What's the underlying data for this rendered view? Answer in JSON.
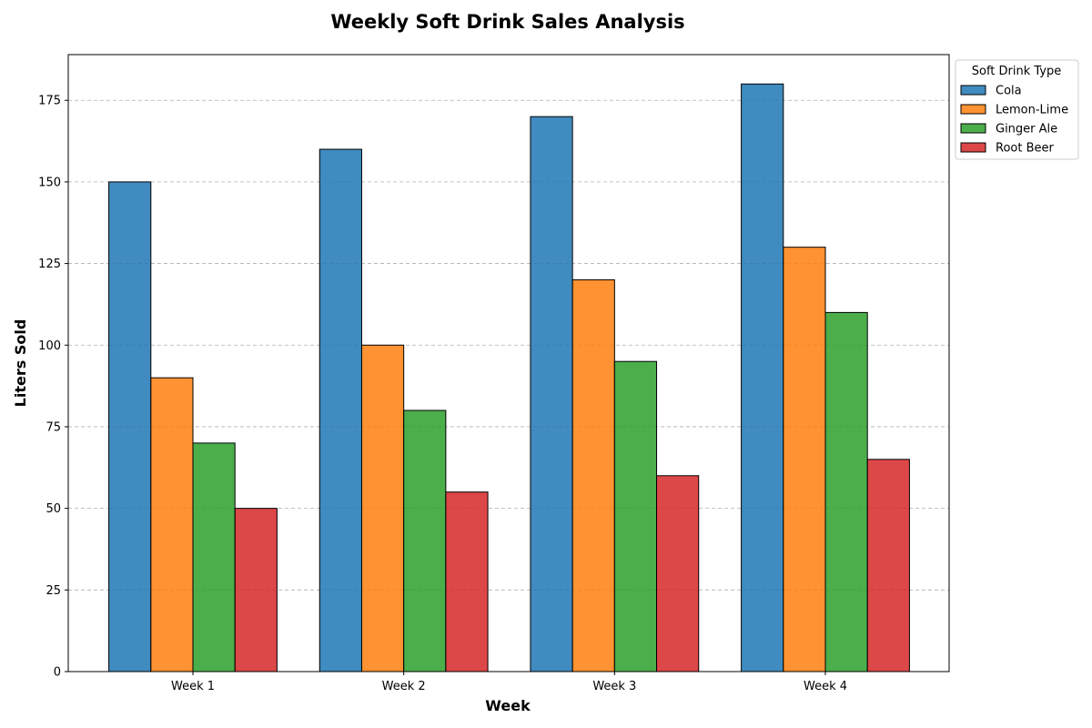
{
  "chart_data": {
    "type": "bar",
    "title": "Weekly Soft Drink Sales Analysis",
    "xlabel": "Week",
    "ylabel": "Liters Sold",
    "categories": [
      "Week 1",
      "Week 2",
      "Week 3",
      "Week 4"
    ],
    "series": [
      {
        "name": "Cola",
        "values": [
          150,
          160,
          170,
          180
        ],
        "color": "#1f77b4"
      },
      {
        "name": "Lemon-Lime",
        "values": [
          90,
          100,
          120,
          130
        ],
        "color": "#ff7f0e"
      },
      {
        "name": "Ginger Ale",
        "values": [
          70,
          80,
          95,
          110
        ],
        "color": "#2ca02c"
      },
      {
        "name": "Root Beer",
        "values": [
          50,
          55,
          60,
          65
        ],
        "color": "#d62728"
      }
    ],
    "ylim": [
      0,
      189
    ],
    "yticks": [
      0,
      25,
      50,
      75,
      100,
      125,
      150,
      175
    ],
    "grid": "y",
    "legend": {
      "title": "Soft Drink Type",
      "placement": "upper-right-outside"
    }
  }
}
